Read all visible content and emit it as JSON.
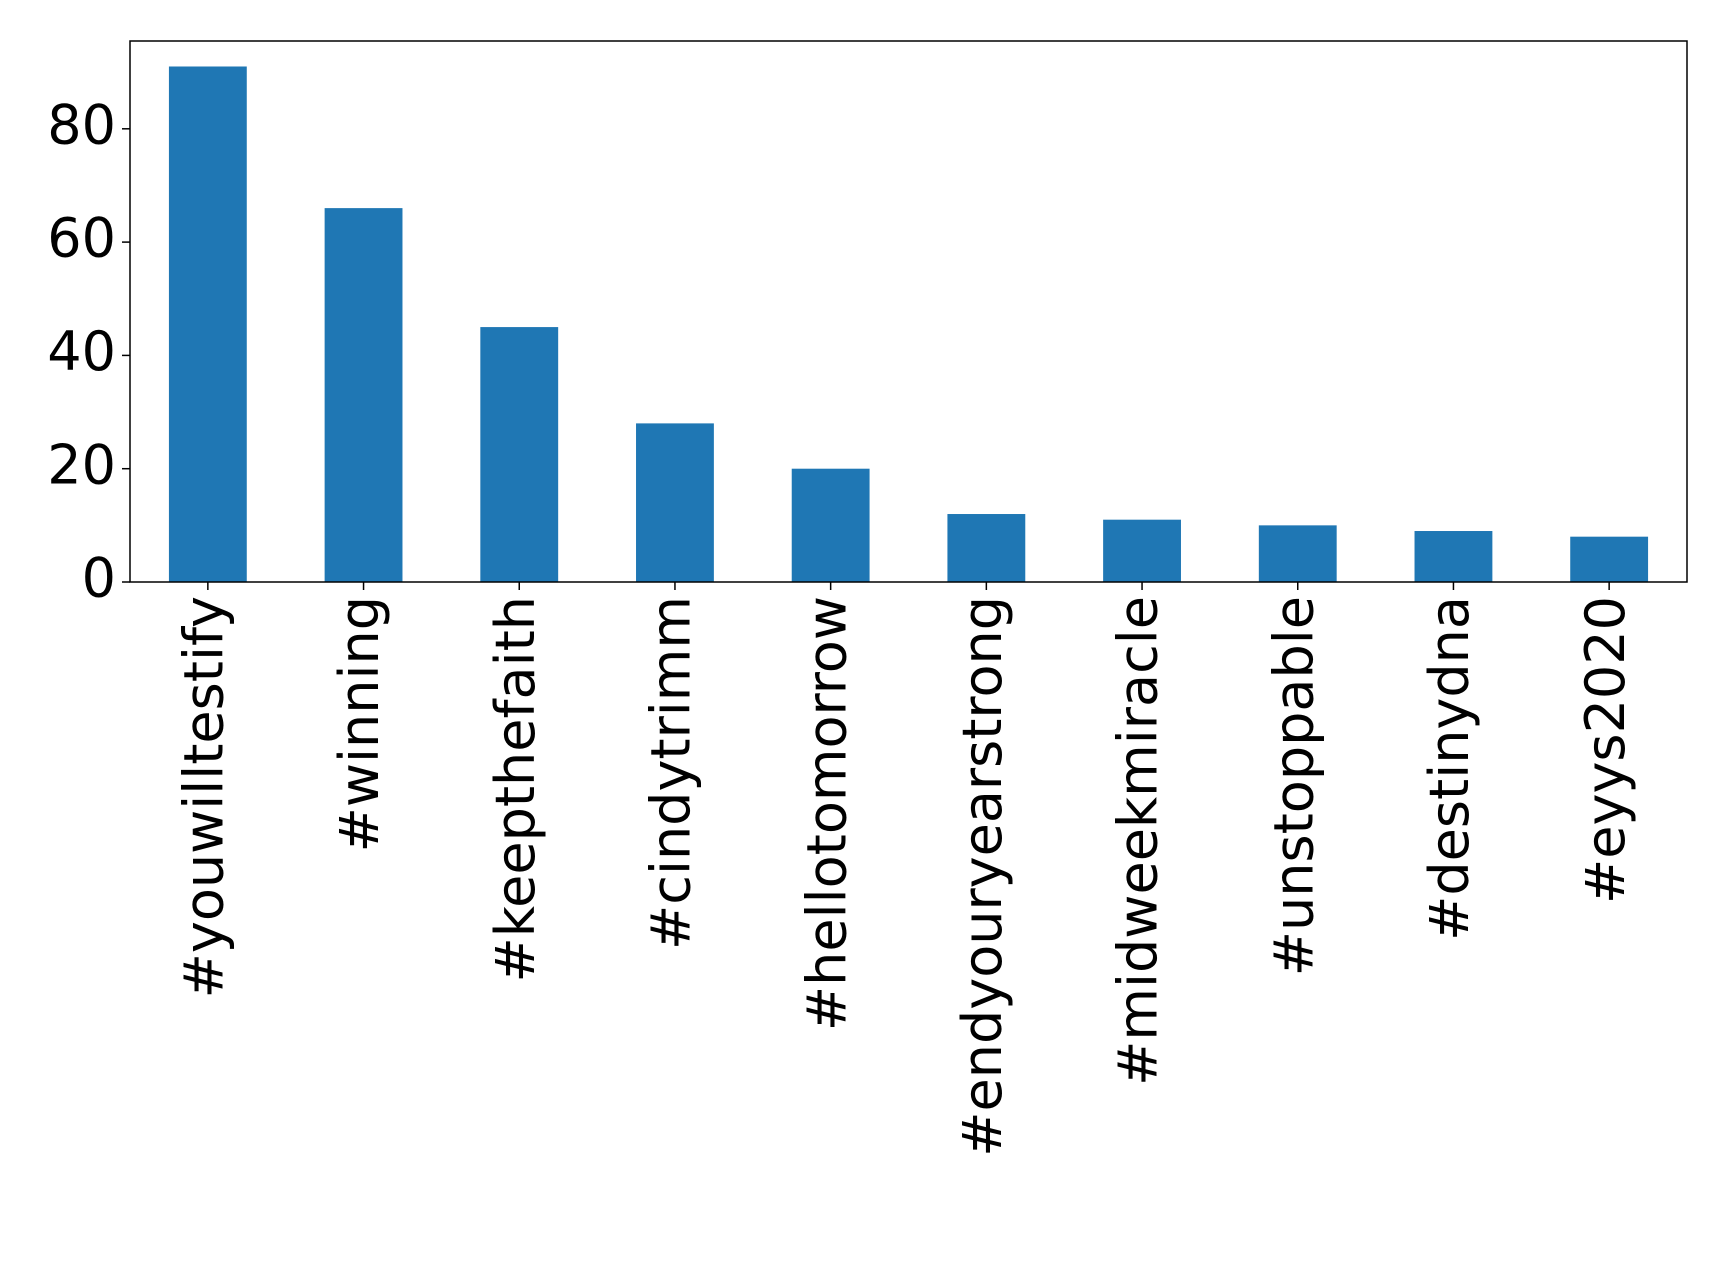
{
  "chart_data": {
    "type": "bar",
    "categories": [
      "#youwilltestify",
      "#winning",
      "#keepthefaith",
      "#cindytrimm",
      "#hellotomorrow",
      "#endyouryearstrong",
      "#midweekmiracle",
      "#unstoppable",
      "#destinydna",
      "#eyys2020"
    ],
    "values": [
      91,
      66,
      45,
      28,
      20,
      12,
      11,
      10,
      9,
      8
    ],
    "color": "#1f77b4",
    "ylim": [
      0,
      95.5
    ],
    "yticks": [
      0,
      20,
      40,
      60,
      80
    ],
    "grid": false
  }
}
